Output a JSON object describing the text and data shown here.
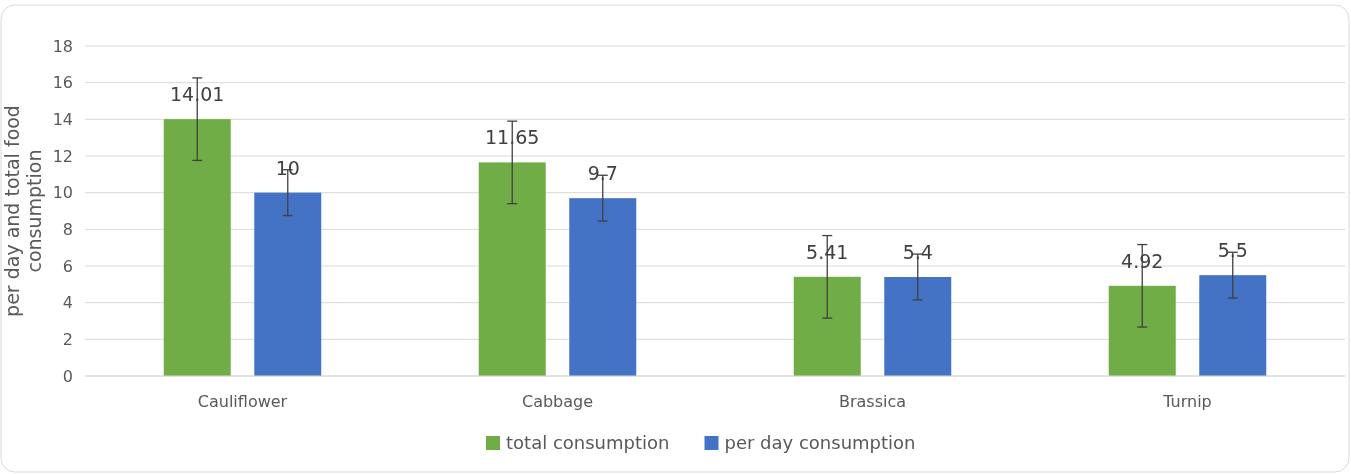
{
  "chart_data": {
    "type": "bar",
    "ylabel": "per day and total food consumption",
    "categories": [
      "Cauliflower",
      "Cabbage",
      "Brassica",
      "Turnip"
    ],
    "series": [
      {
        "name": "total consumption",
        "color": "#70ad47",
        "values": [
          14.01,
          11.65,
          5.41,
          4.92
        ],
        "errors": [
          2.25,
          2.25,
          2.25,
          2.25
        ]
      },
      {
        "name": "per day consumption",
        "color": "#4472c4",
        "values": [
          10,
          9.7,
          5.4,
          5.5
        ],
        "errors": [
          1.25,
          1.25,
          1.25,
          1.25
        ]
      }
    ],
    "ylim": [
      0,
      18
    ],
    "yticks": [
      0,
      2,
      4,
      6,
      8,
      10,
      12,
      14,
      16,
      18
    ],
    "grid": "y",
    "legend": "bottom",
    "data_labels": true
  }
}
